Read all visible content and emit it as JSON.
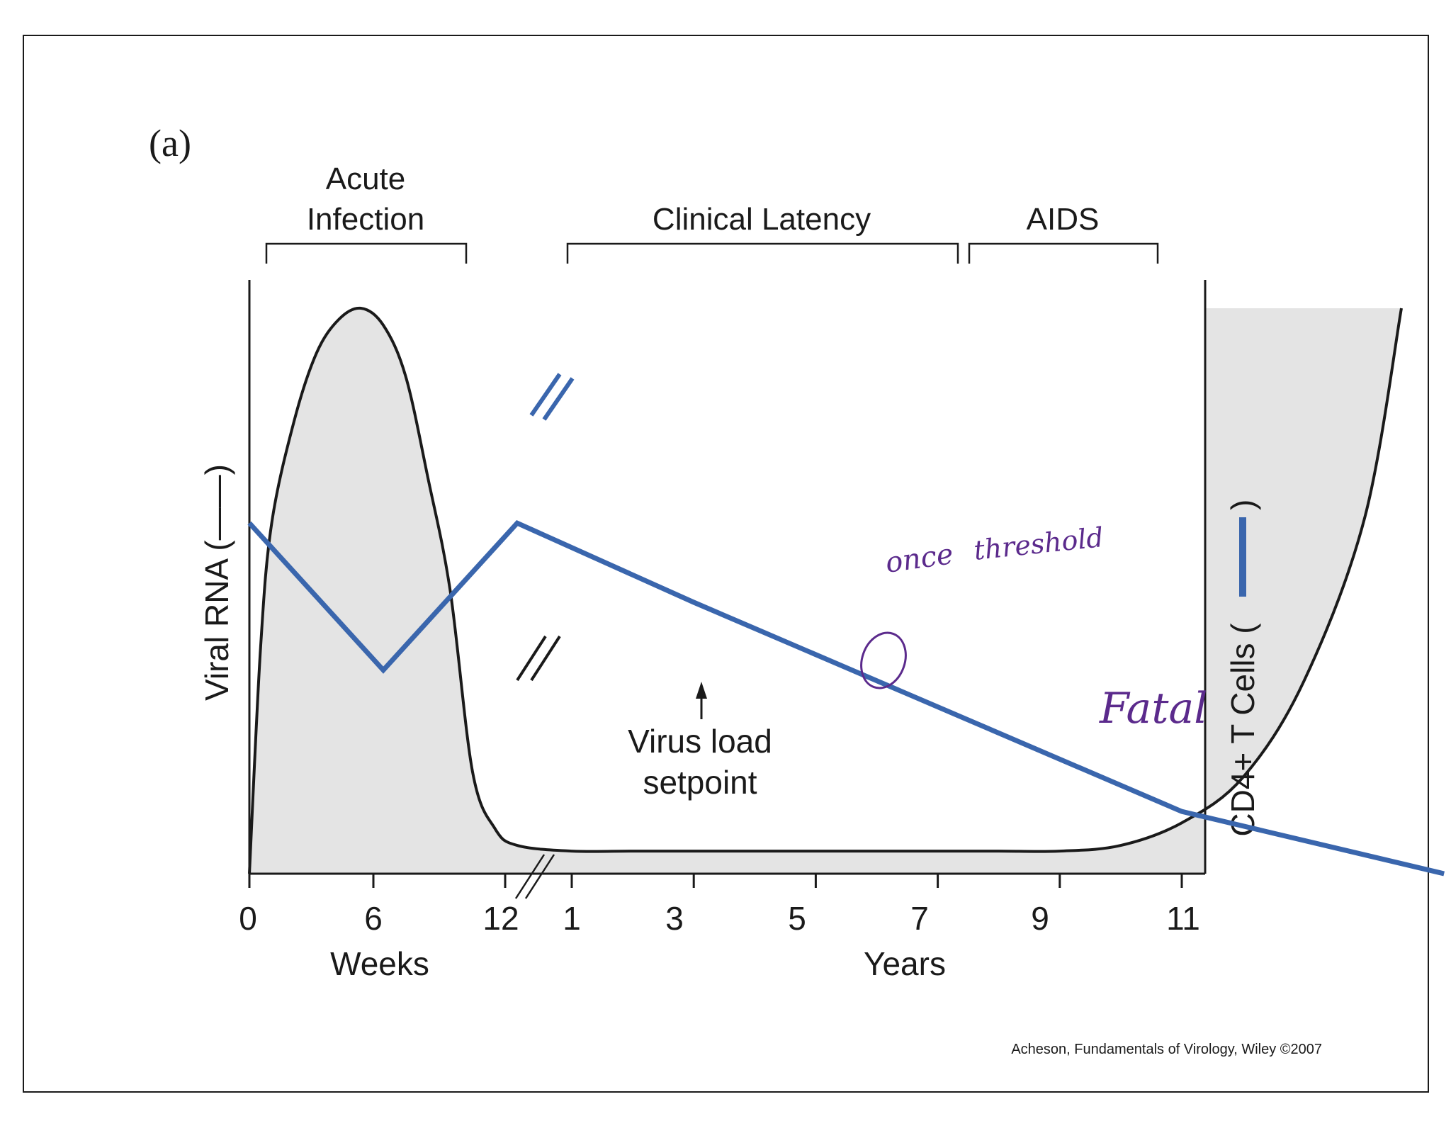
{
  "chart_data": {
    "type": "line",
    "panel_label": "(a)",
    "phases": [
      {
        "label_lines": [
          "Acute",
          "Infection"
        ]
      },
      {
        "label_lines": [
          "Clinical Latency"
        ]
      },
      {
        "label_lines": [
          "AIDS"
        ]
      }
    ],
    "left_axis_label": "Viral RNA (——)",
    "right_axis_label": "CD4+ T Cells (",
    "right_axis_label_close": ")",
    "x_ticks_weeks": [
      "0",
      "6",
      "12"
    ],
    "x_ticks_years": [
      "1",
      "3",
      "5",
      "7",
      "9",
      "11"
    ],
    "xlabel_weeks": "Weeks",
    "xlabel_years": "Years",
    "series": [
      {
        "name": "Viral RNA",
        "color": "#1a1a1a",
        "points": [
          [
            0,
            0.0
          ],
          [
            0.5,
            0.4
          ],
          [
            1,
            0.62
          ],
          [
            2,
            0.8
          ],
          [
            3,
            0.92
          ],
          [
            4,
            0.98
          ],
          [
            5,
            1.0
          ],
          [
            6,
            0.97
          ],
          [
            7,
            0.88
          ],
          [
            8,
            0.7
          ],
          [
            9,
            0.5
          ],
          [
            10,
            0.18
          ],
          [
            11,
            0.08
          ],
          [
            12,
            0.05
          ],
          [
            13,
            0.04
          ],
          [
            14,
            0.04
          ],
          [
            15,
            0.04
          ],
          [
            16,
            0.04
          ],
          [
            17,
            0.04
          ],
          [
            18,
            0.04
          ],
          [
            19,
            0.04
          ],
          [
            20,
            0.04
          ],
          [
            21,
            0.04
          ],
          [
            22,
            0.05
          ],
          [
            23,
            0.09
          ],
          [
            24,
            0.17
          ],
          [
            25,
            0.34
          ],
          [
            26,
            0.63
          ],
          [
            26.6,
            1.0
          ]
        ]
      },
      {
        "name": "CD4+ T Cells",
        "color": "#3a66ad",
        "points": [
          [
            0,
            0.62
          ],
          [
            6,
            0.36
          ],
          [
            12,
            0.62
          ],
          [
            15,
            0.48
          ],
          [
            23,
            0.11
          ],
          [
            27.3,
            0.0
          ]
        ]
      }
    ],
    "annotation": "Virus load setpoint",
    "handwritten_notes": [
      "once",
      "threshold",
      "Fatal"
    ],
    "citation": "Acheson, Fundamentals of Virology, Wiley ©2007"
  },
  "colors": {
    "axis": "#1a1a1a",
    "fill": "#e4e4e4",
    "cd4": "#3a66ad",
    "ink": "#5b2a8c"
  }
}
